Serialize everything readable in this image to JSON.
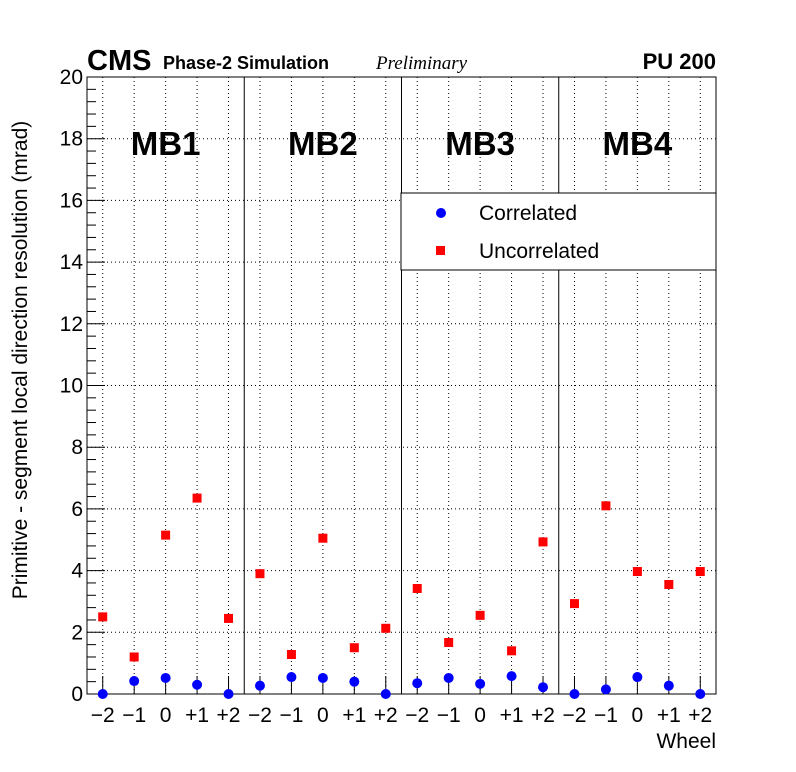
{
  "header": {
    "experiment": "CMS",
    "simulation": "Phase-2 Simulation",
    "status": "Preliminary",
    "pileup": "PU 200"
  },
  "chart_data": {
    "type": "scatter",
    "xlabel": "Wheel",
    "ylabel": "Primitive - segment local direction resolution (mrad)",
    "ylim": [
      0,
      20
    ],
    "y_ticks": [
      "0",
      "2",
      "4",
      "6",
      "8",
      "10",
      "12",
      "14",
      "16",
      "18",
      "20"
    ],
    "grid": true,
    "legend_position": "top-right",
    "stations": [
      "MB1",
      "MB2",
      "MB3",
      "MB4"
    ],
    "wheels": [
      "−2",
      "−1",
      "0",
      "+1",
      "+2"
    ],
    "series": [
      {
        "name": "Correlated",
        "marker": "circle",
        "color": "#0000ff",
        "values": [
          [
            0.0,
            0.42,
            0.52,
            0.3,
            0.0
          ],
          [
            0.27,
            0.55,
            0.52,
            0.4,
            0.0
          ],
          [
            0.35,
            0.52,
            0.33,
            0.58,
            0.22
          ],
          [
            0.0,
            0.15,
            0.55,
            0.27,
            0.0
          ]
        ]
      },
      {
        "name": "Uncorrelated",
        "marker": "square",
        "color": "#ff0000",
        "values": [
          [
            2.5,
            1.2,
            5.15,
            6.35,
            2.45
          ],
          [
            3.9,
            1.28,
            5.05,
            1.5,
            2.13
          ],
          [
            3.42,
            1.67,
            2.55,
            1.4,
            4.93
          ],
          [
            2.93,
            6.1,
            3.97,
            3.55,
            3.97
          ]
        ]
      }
    ]
  }
}
